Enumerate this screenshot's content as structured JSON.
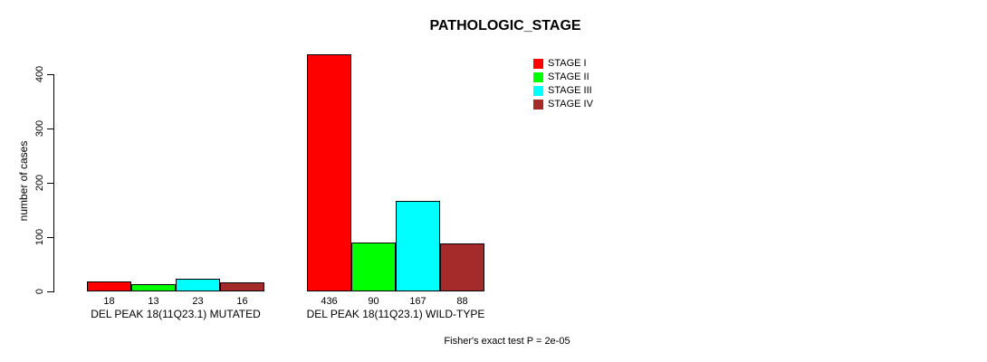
{
  "title": "PATHOLOGIC_STAGE",
  "footer": "Fisher's exact test P = 2e-05",
  "y_axis": {
    "label": "number of cases",
    "ticks": [
      0,
      100,
      200,
      300,
      400
    ]
  },
  "legend": {
    "position": "top-right",
    "items": [
      {
        "label": "STAGE I",
        "color": "#FF0000"
      },
      {
        "label": "STAGE II",
        "color": "#00FF00"
      },
      {
        "label": "STAGE III",
        "color": "#00FFFF"
      },
      {
        "label": "STAGE IV",
        "color": "#A52A2A"
      }
    ]
  },
  "chart_data": {
    "type": "bar",
    "title": "PATHOLOGIC_STAGE",
    "categories": [
      "DEL PEAK 18(11Q23.1) MUTATED",
      "DEL PEAK 18(11Q23.1) WILD-TYPE"
    ],
    "series": [
      {
        "name": "STAGE I",
        "color": "#FF0000",
        "values": [
          18,
          436
        ]
      },
      {
        "name": "STAGE II",
        "color": "#00FF00",
        "values": [
          13,
          90
        ]
      },
      {
        "name": "STAGE III",
        "color": "#00FFFF",
        "values": [
          23,
          167
        ]
      },
      {
        "name": "STAGE IV",
        "color": "#A52A2A",
        "values": [
          16,
          88
        ]
      }
    ],
    "xlabel": "",
    "ylabel": "number of cases",
    "ylim": [
      0,
      400
    ],
    "grid": false,
    "legend_position": "top-right",
    "bar_value_labels_shown": true,
    "annotation": "Fisher's exact test P = 2e-05"
  }
}
